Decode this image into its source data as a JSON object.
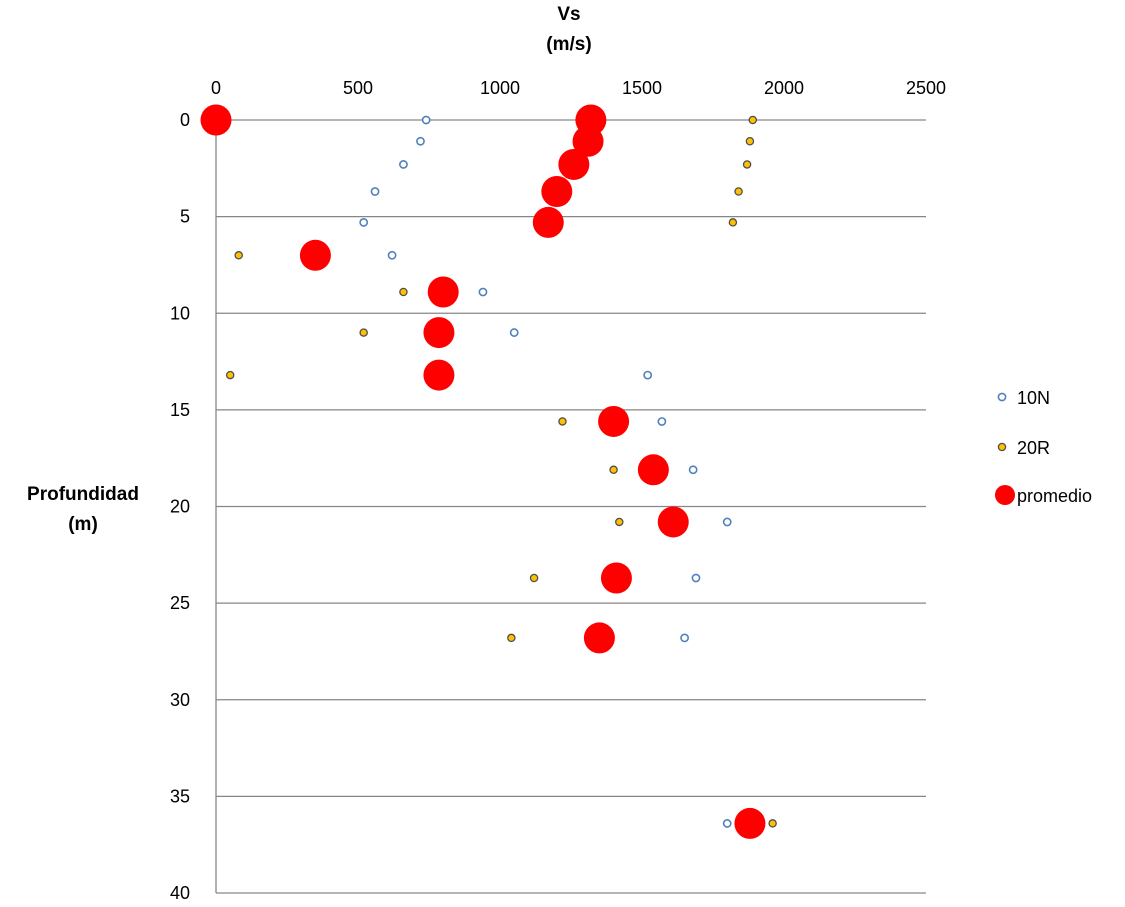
{
  "chart_data": {
    "type": "scatter",
    "title": "",
    "xlabel": [
      "Vs",
      "(m/s)"
    ],
    "ylabel": [
      "Profundidad",
      "(m)"
    ],
    "xlim": [
      0,
      2500
    ],
    "ylim": [
      0,
      40
    ],
    "y_inverted": true,
    "x_ticks": [
      "0",
      "500",
      "1000",
      "1500",
      "2000",
      "2500"
    ],
    "y_ticks": [
      "0",
      "5",
      "10",
      "15",
      "20",
      "25",
      "30",
      "35",
      "40"
    ],
    "x_axis_position": "top",
    "grid": "horizontal",
    "legend_position": "right",
    "series": [
      {
        "name": "10N",
        "marker": "open-circle-small",
        "color": "#4F81BD",
        "points": [
          [
            740,
            0
          ],
          [
            720,
            1.1
          ],
          [
            660,
            2.3
          ],
          [
            560,
            3.7
          ],
          [
            520,
            5.3
          ],
          [
            620,
            7.0
          ],
          [
            940,
            8.9
          ],
          [
            1050,
            11.0
          ],
          [
            1520,
            13.2
          ],
          [
            1570,
            15.6
          ],
          [
            1680,
            18.1
          ],
          [
            1800,
            20.8
          ],
          [
            1690,
            23.7
          ],
          [
            1650,
            26.8
          ],
          [
            1800,
            36.4
          ]
        ]
      },
      {
        "name": "20R",
        "marker": "filled-circle-small",
        "color": "#FFC000",
        "points": [
          [
            1890,
            0
          ],
          [
            1880,
            1.1
          ],
          [
            1870,
            2.3
          ],
          [
            1840,
            3.7
          ],
          [
            1820,
            5.3
          ],
          [
            80,
            7.0
          ],
          [
            660,
            8.9
          ],
          [
            520,
            11.0
          ],
          [
            50,
            13.2
          ],
          [
            1220,
            15.6
          ],
          [
            1400,
            18.1
          ],
          [
            1420,
            20.8
          ],
          [
            1120,
            23.7
          ],
          [
            1040,
            26.8
          ],
          [
            1960,
            36.4
          ]
        ]
      },
      {
        "name": "promedio",
        "marker": "filled-circle-large",
        "color": "#FF0000",
        "points": [
          [
            0,
            0
          ],
          [
            1320,
            0
          ],
          [
            1310,
            1.1
          ],
          [
            1260,
            2.3
          ],
          [
            1200,
            3.7
          ],
          [
            1170,
            5.3
          ],
          [
            350,
            7.0
          ],
          [
            800,
            8.9
          ],
          [
            785,
            11.0
          ],
          [
            785,
            13.2
          ],
          [
            1400,
            15.6
          ],
          [
            1540,
            18.1
          ],
          [
            1610,
            20.8
          ],
          [
            1410,
            23.7
          ],
          [
            1350,
            26.8
          ],
          [
            1880,
            36.4
          ]
        ]
      }
    ]
  }
}
